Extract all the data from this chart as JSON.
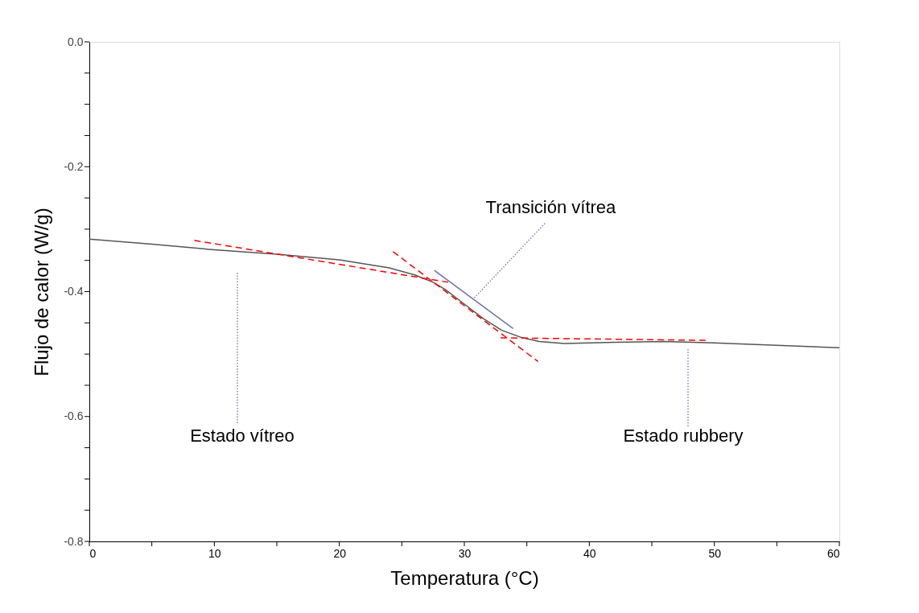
{
  "chart_data": {
    "type": "line",
    "xlabel": "Temperatura (°C)",
    "ylabel": "Flujo de calor (W/g)",
    "xlim": [
      0,
      60
    ],
    "ylim": [
      -0.8,
      0
    ],
    "xticks": [
      0,
      {
        "value": 5,
        "label": null
      },
      10,
      {
        "value": 15,
        "label": null
      },
      20,
      {
        "value": 25,
        "label": null
      },
      30,
      {
        "value": 35,
        "label": null
      },
      40,
      {
        "value": 45,
        "label": null
      },
      50,
      {
        "value": 55,
        "label": null
      },
      60
    ],
    "yticks": [
      {
        "value": -0.8,
        "label": "-0.8"
      },
      {
        "value": -0.75,
        "label": null
      },
      {
        "value": -0.7,
        "label": null
      },
      {
        "value": -0.65,
        "label": null
      },
      {
        "value": -0.6,
        "label": "-0.6"
      },
      {
        "value": -0.55,
        "label": null
      },
      {
        "value": -0.5,
        "label": null
      },
      {
        "value": -0.45,
        "label": null
      },
      {
        "value": -0.4,
        "label": "-0.4"
      },
      {
        "value": -0.35,
        "label": null
      },
      {
        "value": -0.3,
        "label": null
      },
      {
        "value": -0.25,
        "label": null
      },
      {
        "value": -0.2,
        "label": "-0.2"
      },
      {
        "value": -0.15,
        "label": null
      },
      {
        "value": -0.1,
        "label": null
      },
      {
        "value": -0.05,
        "label": null
      },
      {
        "value": 0,
        "label": "0.0"
      }
    ],
    "grid": false,
    "legend": false,
    "marker": "none",
    "series": [
      {
        "color": "#555555",
        "line_style": "solid",
        "x": [
          0,
          5,
          10,
          15,
          20,
          24,
          26,
          27.5,
          28.5,
          30,
          31.5,
          33,
          34.5,
          36,
          38,
          42,
          46,
          50,
          55,
          60
        ],
        "values": [
          -0.316,
          -0.324,
          -0.333,
          -0.34,
          -0.349,
          -0.362,
          -0.373,
          -0.385,
          -0.397,
          -0.42,
          -0.443,
          -0.462,
          -0.473,
          -0.48,
          -0.483,
          -0.481,
          -0.48,
          -0.482,
          -0.486,
          -0.49
        ]
      },
      {
        "color": "#ff0000",
        "line_style": "dashed",
        "x": [
          8.4,
          28.7
        ],
        "values": [
          -0.318,
          -0.385
        ]
      },
      {
        "color": "#ff0000",
        "line_style": "dashed",
        "x": [
          24.3,
          35.9
        ],
        "values": [
          -0.336,
          -0.512
        ]
      },
      {
        "color": "#ff0000",
        "line_style": "dashed",
        "x": [
          32.9,
          49.3
        ],
        "values": [
          -0.474,
          -0.478
        ]
      },
      {
        "color": "#7070b0",
        "line_style": "solid",
        "x": [
          27.6,
          33.9
        ],
        "values": [
          -0.366,
          -0.459
        ]
      }
    ],
    "annotations": [
      {
        "text": "Transición vítrea",
        "x": 30.8,
        "y": -0.41
      },
      "Estado vítreo",
      "Estado rubbery"
    ]
  }
}
